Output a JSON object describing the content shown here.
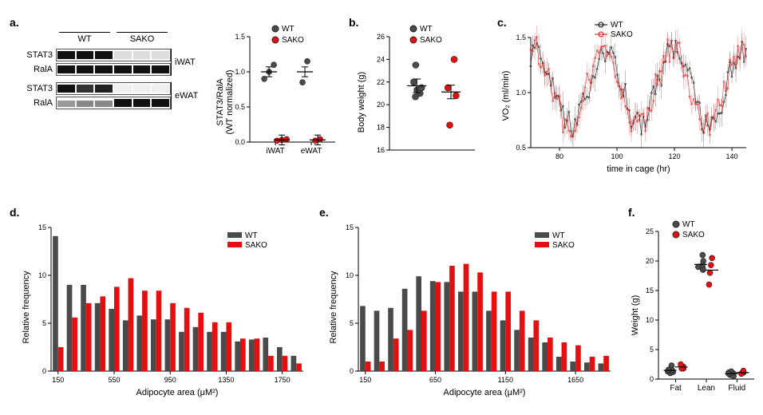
{
  "colors": {
    "wt": "#4a4a4a",
    "sako": "#e60e0e",
    "axis": "#000000",
    "blot_dark": "#1a1a1a",
    "blot_light": "#666"
  },
  "panel_a": {
    "label": "a.",
    "blot_labels_left": [
      "STAT3",
      "RalA",
      "STAT3",
      "RalA"
    ],
    "blot_labels_right": [
      "iWAT",
      "eWAT"
    ],
    "header_wt": "WT",
    "header_sako": "SAKO",
    "scatter": {
      "ylabel_line1": "STAT3/RalA",
      "ylabel_line2": "(WT normalized)",
      "legend": [
        "WT",
        "SAKO"
      ],
      "categories": [
        "iWAT",
        "eWAT"
      ],
      "ylim": [
        0.0,
        1.5
      ],
      "yticks": [
        0.0,
        0.5,
        1.0,
        1.5
      ],
      "wt_iWAT": [
        0.9,
        1.0,
        1.1
      ],
      "sako_iWAT": [
        0.02,
        0.03,
        0.04
      ],
      "wt_eWAT": [
        0.85,
        1.15
      ],
      "sako_eWAT": [
        0.02,
        0.04
      ]
    }
  },
  "panel_b": {
    "label": "b.",
    "ylabel": "Body weight (g)",
    "legend": [
      "WT",
      "SAKO"
    ],
    "ylim": [
      16,
      26
    ],
    "yticks": [
      16,
      18,
      20,
      22,
      24,
      26
    ],
    "wt_points": [
      21.3,
      21.0,
      22.0,
      20.7,
      21.5,
      23.5
    ],
    "sako_points": [
      24.0,
      21.5,
      20.8,
      18.2
    ]
  },
  "panel_c": {
    "label": "c.",
    "ylabel": "VO₂ (ml/min)",
    "xlabel": "time in cage (hr)",
    "legend": [
      "WT",
      "SAKO"
    ],
    "xlim": [
      70,
      145
    ],
    "xticks": [
      80,
      100,
      120,
      140
    ],
    "ylim": [
      0.5,
      1.5
    ],
    "yticks": [
      0.5,
      1.0,
      1.5
    ]
  },
  "panel_d": {
    "label": "d.",
    "ylabel": "Relative frequency",
    "xlabel": "Adipocyte area (μM²)",
    "legend": [
      "WT",
      "SAKO"
    ],
    "xlim": [
      100,
      1900
    ],
    "xticks": [
      150,
      550,
      950,
      1350,
      1750
    ],
    "ylim": [
      0,
      15
    ],
    "yticks": [
      0,
      5,
      10,
      15
    ],
    "bin_width": 100,
    "bins": [
      150,
      250,
      350,
      450,
      550,
      650,
      750,
      850,
      950,
      1050,
      1150,
      1250,
      1350,
      1450,
      1550,
      1650,
      1750,
      1850
    ],
    "wt": [
      14.1,
      9.0,
      9.0,
      7.1,
      6.5,
      5.3,
      5.8,
      5.4,
      5.4,
      4.1,
      4.6,
      4.1,
      4.1,
      3.1,
      3.3,
      3.5,
      2.5,
      1.6
    ],
    "sako": [
      2.5,
      5.6,
      7.1,
      7.8,
      8.8,
      9.7,
      8.4,
      8.4,
      7.1,
      6.6,
      6.1,
      5.1,
      5.1,
      3.4,
      3.4,
      1.6,
      1.6,
      0.8
    ]
  },
  "panel_e": {
    "label": "e.",
    "ylabel": "Relative frequency",
    "xlabel": "Adipocyte area (μM²)",
    "legend": [
      "WT",
      "SAKO"
    ],
    "xlim": [
      100,
      1900
    ],
    "xticks": [
      150,
      650,
      1150,
      1650
    ],
    "ylim": [
      0,
      15
    ],
    "yticks": [
      0,
      5,
      10,
      15
    ],
    "bin_width": 100,
    "bins": [
      150,
      250,
      350,
      450,
      550,
      650,
      750,
      850,
      950,
      1050,
      1150,
      1250,
      1350,
      1450,
      1550,
      1650,
      1750,
      1850
    ],
    "wt": [
      6.8,
      6.3,
      6.6,
      8.6,
      9.9,
      9.4,
      9.3,
      8.3,
      8.3,
      6.3,
      5.3,
      4.3,
      3.5,
      3.0,
      1.5,
      1.0,
      0.9,
      0.8
    ],
    "sako": [
      1.0,
      1.0,
      3.4,
      4.3,
      6.3,
      9.3,
      11.0,
      11.2,
      10.3,
      8.3,
      8.3,
      6.3,
      5.3,
      3.5,
      3.0,
      2.7,
      1.5,
      1.6
    ]
  },
  "panel_f": {
    "label": "f.",
    "ylabel": "Weight (g)",
    "legend": [
      "WT",
      "SAKO"
    ],
    "categories": [
      "Fat",
      "Lean",
      "Fluid"
    ],
    "ylim": [
      0,
      25
    ],
    "yticks": [
      0,
      5,
      10,
      15,
      20,
      25
    ],
    "wt_fat": [
      1.2,
      2.3,
      1.0,
      1.3,
      1.5,
      1.6
    ],
    "sako_fat": [
      1.8,
      2.1,
      1.8,
      2.5
    ],
    "wt_lean": [
      19.0,
      20.0,
      18.5,
      18.7,
      19.3,
      21.0
    ],
    "sako_lean": [
      16.0,
      18.0,
      20.5,
      19.3
    ],
    "wt_fluid": [
      1.0,
      1.1,
      1.3,
      0.7,
      0.5,
      0.9
    ],
    "sako_fluid": [
      1.0,
      1.1,
      0.9,
      1.4
    ]
  }
}
